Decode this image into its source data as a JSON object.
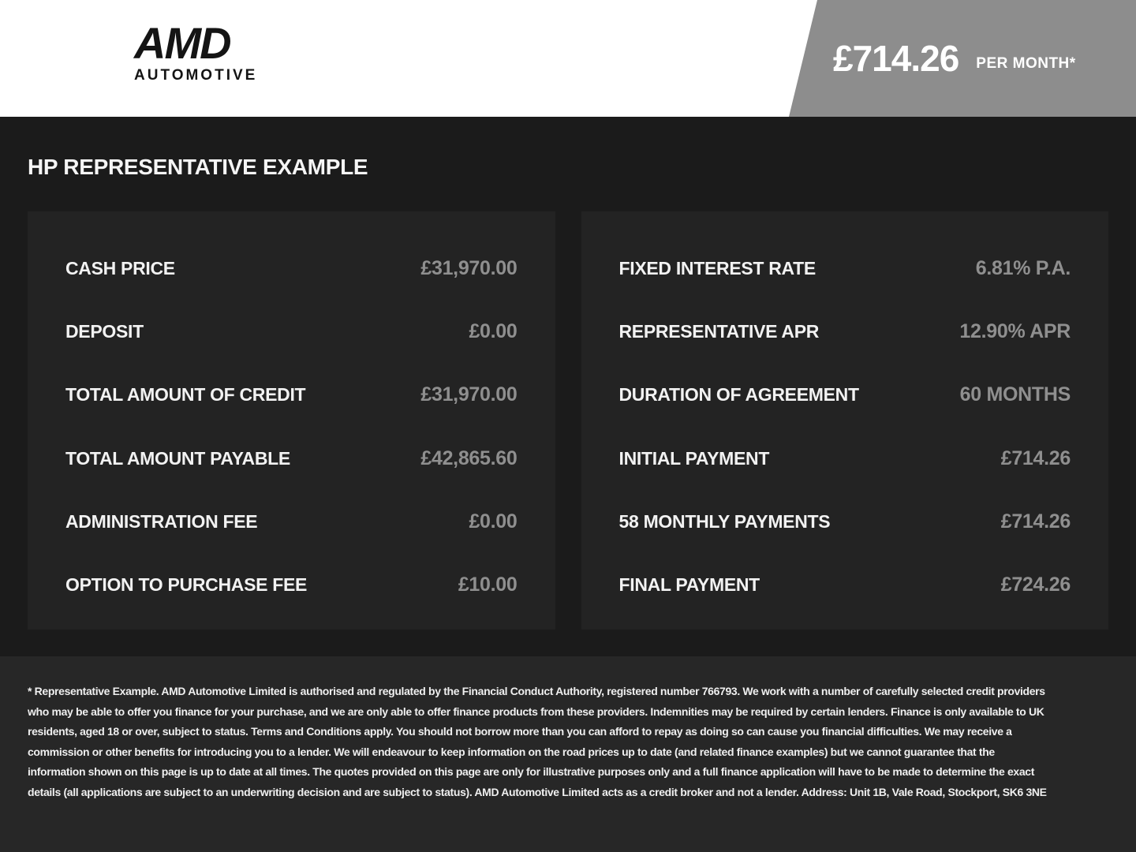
{
  "header": {
    "logo": {
      "name": "AMD",
      "subtitle": "AUTOMOTIVE"
    },
    "price_banner": {
      "amount": "£714.26",
      "period": "PER MONTH*"
    }
  },
  "main": {
    "title": "HP REPRESENTATIVE EXAMPLE",
    "left_panel": {
      "rows": [
        {
          "label": "CASH PRICE",
          "value": "£31,970.00"
        },
        {
          "label": "DEPOSIT",
          "value": "£0.00"
        },
        {
          "label": "TOTAL AMOUNT OF CREDIT",
          "value": "£31,970.00"
        },
        {
          "label": "TOTAL AMOUNT PAYABLE",
          "value": "£42,865.60"
        },
        {
          "label": "ADMINISTRATION FEE",
          "value": "£0.00"
        },
        {
          "label": "OPTION TO PURCHASE FEE",
          "value": "£10.00"
        }
      ]
    },
    "right_panel": {
      "rows": [
        {
          "label": "FIXED INTEREST RATE",
          "value": "6.81% P.A."
        },
        {
          "label": "REPRESENTATIVE APR",
          "value": "12.90% APR"
        },
        {
          "label": "DURATION OF AGREEMENT",
          "value": "60 MONTHS"
        },
        {
          "label": "INITIAL PAYMENT",
          "value": "£714.26"
        },
        {
          "label": "58 MONTHLY PAYMENTS",
          "value": "£714.26"
        },
        {
          "label": "FINAL PAYMENT",
          "value": "£724.26"
        }
      ]
    }
  },
  "footer": {
    "disclaimer": "* Representative Example. AMD Automotive Limited is authorised and regulated by the Financial Conduct Authority, registered number 766793. We work with a number of carefully selected credit providers who may be able to offer you finance for your purchase, and we are only able to offer finance products from these providers. Indemnities may be required by certain lenders. Finance is only available to UK residents, aged 18 or over, subject to status. Terms and Conditions apply. You should not borrow more than you can afford to repay as doing so can cause you financial difficulties. We may receive a commission or other benefits for introducing you to a lender. We will endeavour to keep information on the road prices up to date (and related finance examples) but we cannot guarantee that the information shown on this page is up to date at all times. The quotes provided on this page are only for illustrative purposes only and a full finance application will have to be made to determine the exact details (all applications are subject to an underwriting decision and are subject to status). AMD Automotive Limited acts as a credit broker and not a lender. Address: Unit 1B, Vale Road, Stockport, SK6 3NE"
  },
  "colors": {
    "header_bg": "#ffffff",
    "banner_gray": "#8d8d8d",
    "page_bg": "#1b1b1b",
    "panel_bg": "#232323",
    "footer_bg": "#272727",
    "label_white": "#f2f2f2",
    "value_gray": "#8f8f8f"
  }
}
